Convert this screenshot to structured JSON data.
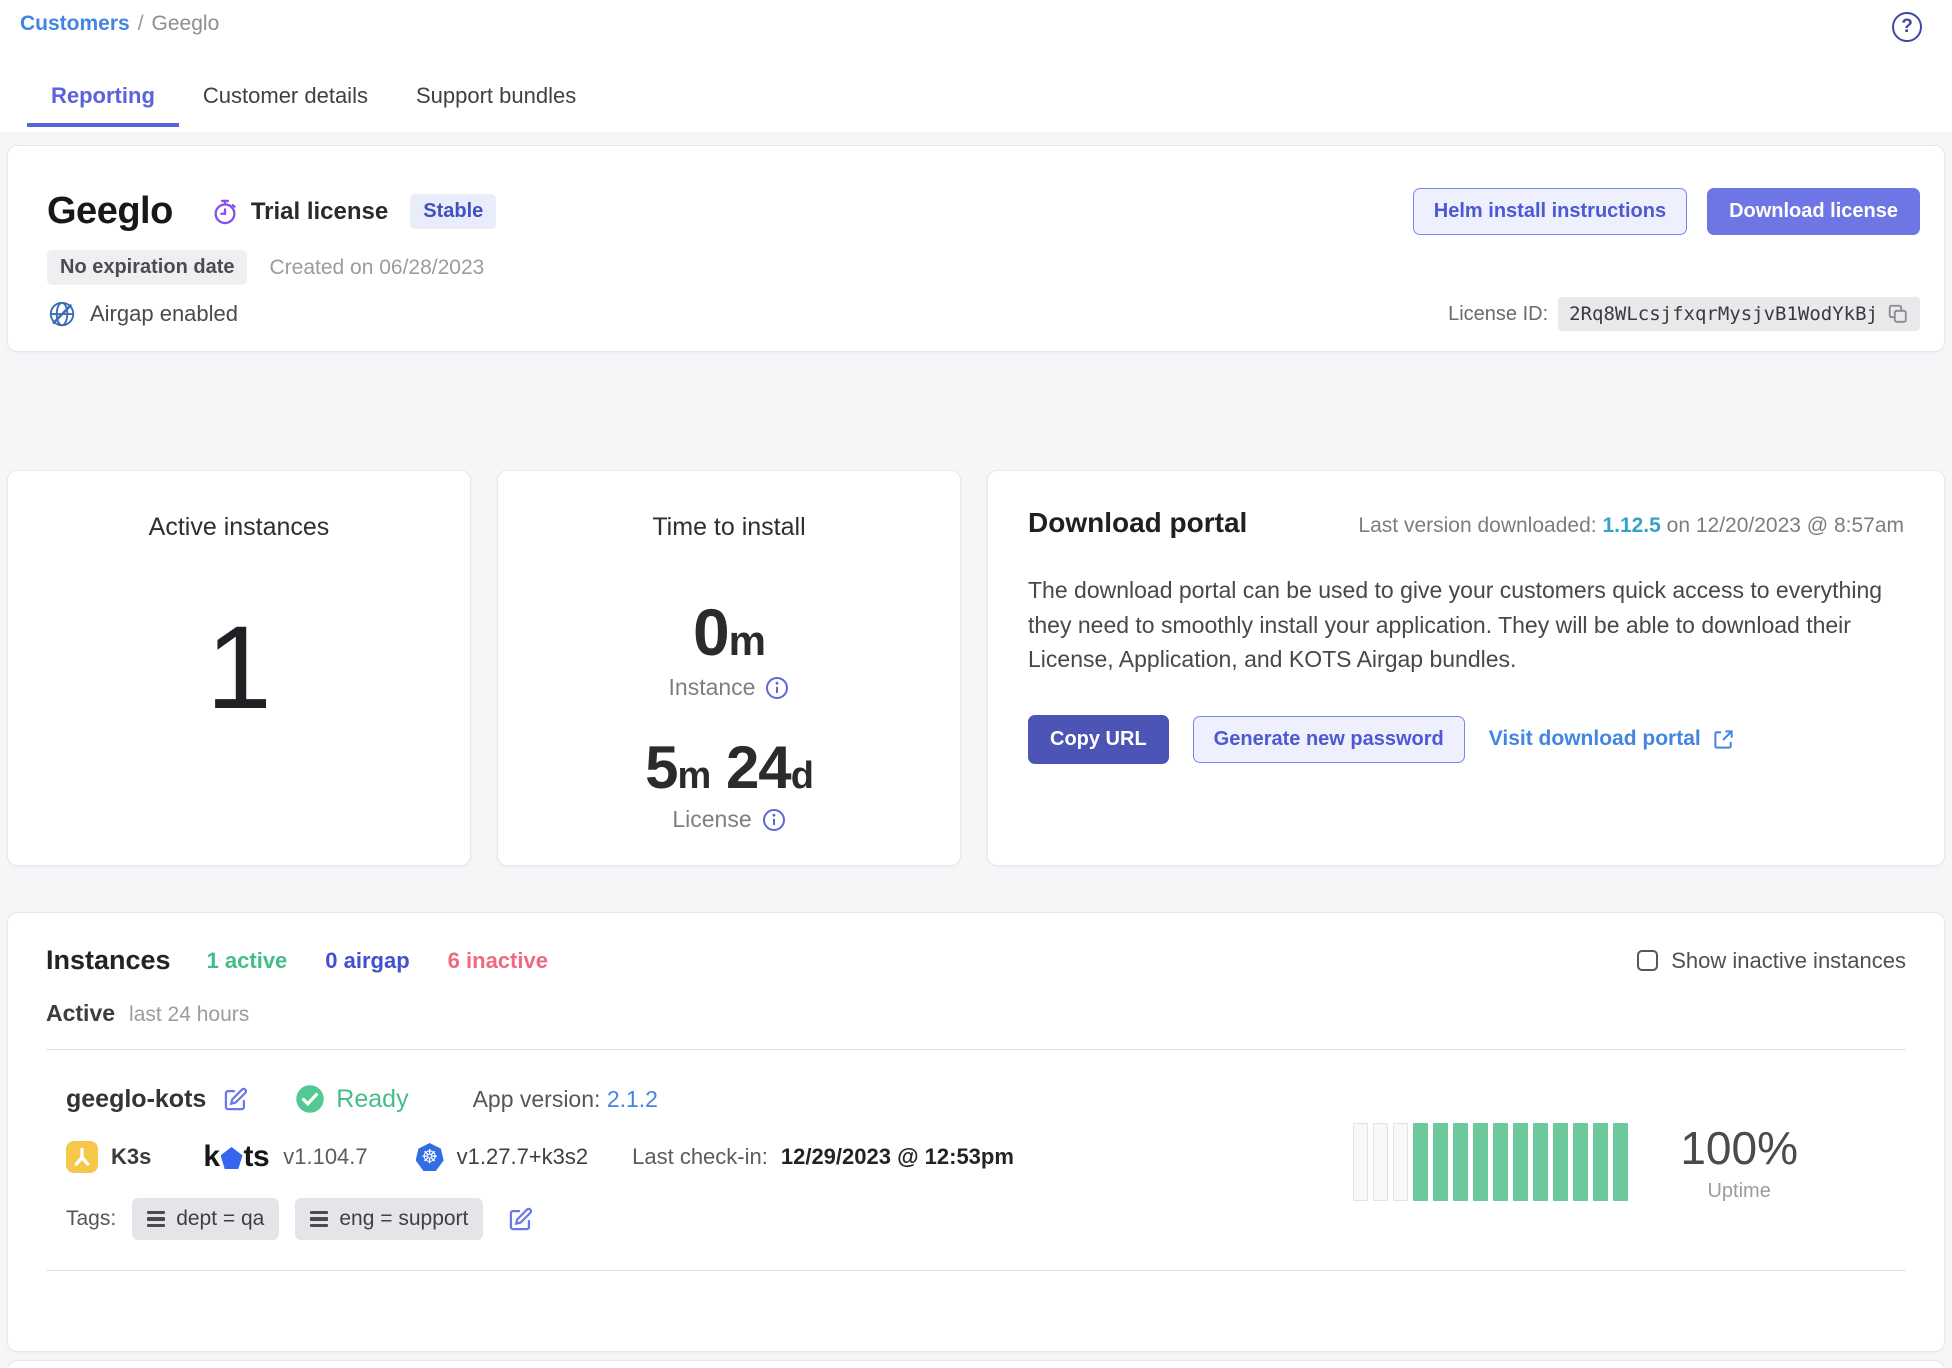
{
  "breadcrumb": {
    "customers": "Customers",
    "separator": "/",
    "current": "Geeglo"
  },
  "icons": {
    "help_glyph": "?",
    "kubernetes_glyph": "☸"
  },
  "tabs": [
    {
      "label": "Reporting"
    },
    {
      "label": "Customer details"
    },
    {
      "label": "Support bundles"
    }
  ],
  "header": {
    "name": "Geeglo",
    "license_type": "Trial license",
    "channel_badge": "Stable",
    "expiration_badge": "No expiration date",
    "created": "Created on 06/28/2023",
    "airgap_label": "Airgap enabled",
    "helm_button": "Helm install instructions",
    "download_button": "Download license",
    "license_id_label": "License ID:",
    "license_id": "2Rq8WLcsjfxqrMysjvB1WodYkBj"
  },
  "stats": {
    "active_instances": {
      "title": "Active instances",
      "value": "1"
    },
    "time_to_install": {
      "title": "Time to install",
      "instance_value": "0",
      "instance_unit": "m",
      "instance_label": "Instance",
      "license_value_a": "5",
      "license_unit_a": "m",
      "license_value_b": "24",
      "license_unit_b": "d",
      "license_label": "License"
    }
  },
  "download_portal": {
    "title": "Download portal",
    "last_version_label": "Last version downloaded:",
    "last_version": "1.12.5",
    "last_version_suffix": "on 12/20/2023 @ 8:57am",
    "description": "The download portal can be used to give your customers quick access to everything they need to smoothly install your application. They will be able to download their License, Application, and KOTS Airgap bundles.",
    "copy_url_button": "Copy URL",
    "generate_password_button": "Generate new password",
    "visit_portal_link": "Visit download portal"
  },
  "instances": {
    "title": "Instances",
    "counts": {
      "active": "1 active",
      "airgap": "0 airgap",
      "inactive": "6 inactive"
    },
    "show_inactive_label": "Show inactive instances",
    "section_label": "Active",
    "section_period": "last 24 hours",
    "row": {
      "name": "geeglo-kots",
      "status": "Ready",
      "app_version_label": "App version:",
      "app_version": "2.1.2",
      "distribution": "K3s",
      "kots_logo_k": "k",
      "kots_logo_ts": "ts",
      "kots_version": "v1.104.7",
      "kubernetes_version": "v1.27.7+k3s2",
      "last_checkin_label": "Last check-in:",
      "last_checkin": "12/29/2023 @ 12:53pm",
      "uptime_value": "100%",
      "uptime_label": "Uptime",
      "uptime_bars": [
        0,
        0,
        0,
        1,
        1,
        1,
        1,
        1,
        1,
        1,
        1,
        1,
        1,
        1
      ],
      "tags_label": "Tags:",
      "tags": [
        "dept = qa",
        "eng = support"
      ]
    }
  },
  "colors": {
    "link_blue": "#4285e2",
    "tab_active": "#5a63d8",
    "accent_indigo": "#6d76e4",
    "dark_indigo": "#4c55b6",
    "outline_indigo_text": "#4d58d4",
    "outline_indigo_border": "#7a86e8",
    "teal_version": "#35a3c6",
    "green": "#43bd8a",
    "bar_green": "#6bc99b",
    "pink": "#f0697e",
    "airgap_indigo": "#4250cd",
    "purple_icon": "#8650f2"
  }
}
